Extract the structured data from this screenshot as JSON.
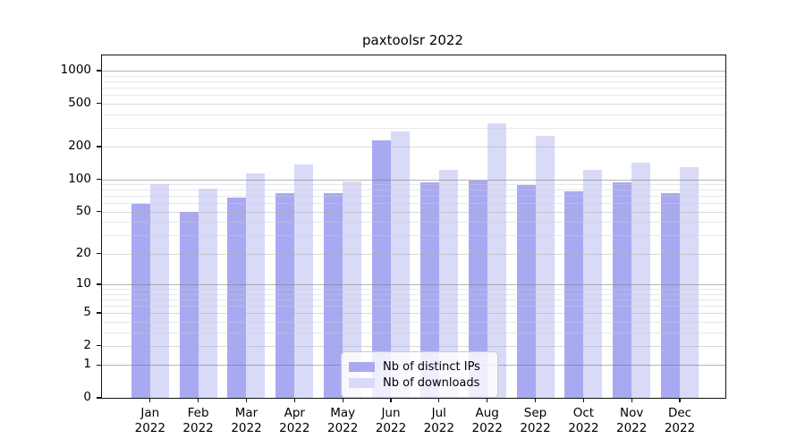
{
  "title": "paxtoolsr 2022",
  "chart_data": {
    "type": "bar",
    "title": "paxtoolsr 2022",
    "categories": [
      "Jan",
      "Feb",
      "Mar",
      "Apr",
      "May",
      "Jun",
      "Jul",
      "Aug",
      "Sep",
      "Oct",
      "Nov",
      "Dec"
    ],
    "year_label": "2022",
    "series": [
      {
        "name": "Nb of distinct IPs",
        "color": "#a9a9f2",
        "values": [
          59,
          50,
          68,
          74,
          75,
          230,
          93,
          97,
          89,
          78,
          93,
          75
        ]
      },
      {
        "name": "Nb of downloads",
        "color": "#d9d9f8",
        "values": [
          90,
          82,
          114,
          137,
          96,
          277,
          123,
          328,
          252,
          123,
          143,
          130
        ]
      }
    ],
    "yscale": "log10(x+1)",
    "yticks": [
      0,
      1,
      2,
      5,
      10,
      20,
      50,
      100,
      200,
      500,
      1000
    ],
    "ylim": [
      0,
      1380
    ],
    "xlabel": "",
    "ylabel": "",
    "grid": "horizontal, log minor + major",
    "legend_position": "lower center inside plot",
    "colors": {
      "axis": "#111111",
      "major_grid": "#8c8c8c",
      "mid_grid": "#c4c4c4",
      "minor_grid": "#e2e2e2",
      "background": "#ffffff"
    }
  }
}
